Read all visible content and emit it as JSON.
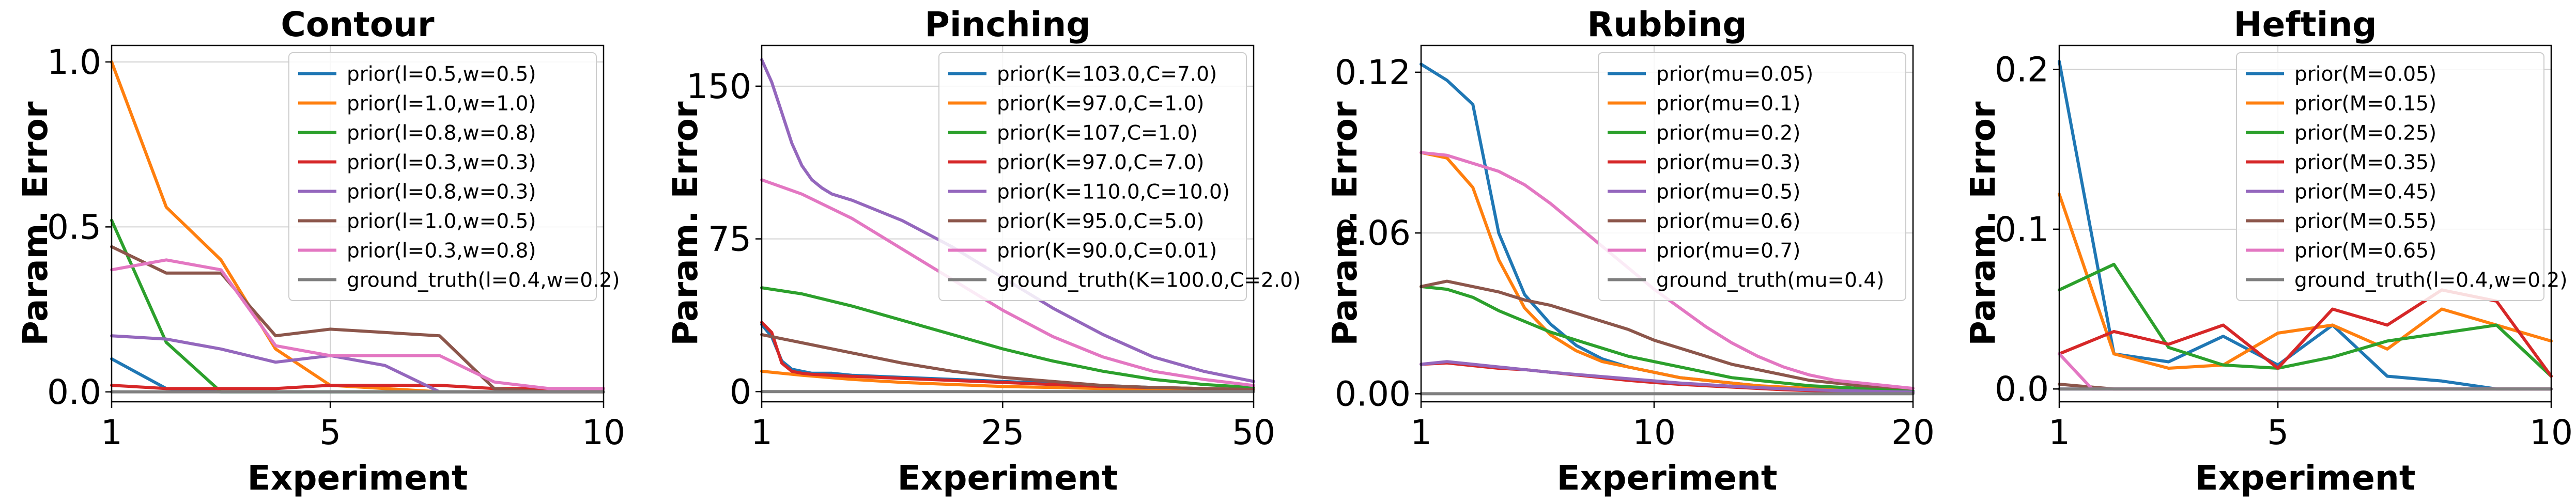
{
  "colors": {
    "c0": "#1f77b4",
    "c1": "#ff7f0e",
    "c2": "#2ca02c",
    "c3": "#d62728",
    "c4": "#9467bd",
    "c5": "#8c564b",
    "c6": "#e377c2",
    "c7": "#7f7f7f"
  },
  "chart_data": [
    {
      "type": "line",
      "title": "Contour",
      "xlabel": "Experiment",
      "ylabel": "Param. Error",
      "xlim": [
        1,
        10
      ],
      "ylim": [
        -0.03,
        1.05
      ],
      "xticks": [
        1,
        5,
        10
      ],
      "yticks": [
        0.0,
        0.5,
        1.0
      ],
      "ytick_labels": [
        "0.0",
        "0.5",
        "1.0"
      ],
      "grid": true,
      "legend_position": "upper-right",
      "series": [
        {
          "name": "prior(l=0.5,w=0.5)",
          "x": [
            1,
            2,
            3,
            4,
            5,
            6,
            7,
            8,
            9,
            10
          ],
          "values": [
            0.1,
            0.01,
            0.0,
            0.0,
            0.0,
            0.0,
            0.0,
            0.0,
            0.0,
            0.0
          ]
        },
        {
          "name": "prior(l=1.0,w=1.0)",
          "x": [
            1,
            2,
            3,
            4,
            5,
            6,
            7,
            8,
            9,
            10
          ],
          "values": [
            1.0,
            0.56,
            0.4,
            0.13,
            0.02,
            0.01,
            0.0,
            0.0,
            0.0,
            0.0
          ]
        },
        {
          "name": "prior(l=0.8,w=0.8)",
          "x": [
            1,
            2,
            3,
            4,
            5,
            6,
            7,
            8,
            9,
            10
          ],
          "values": [
            0.52,
            0.15,
            0.0,
            0.0,
            0.0,
            0.0,
            0.0,
            0.0,
            0.0,
            0.0
          ]
        },
        {
          "name": "prior(l=0.3,w=0.3)",
          "x": [
            1,
            2,
            3,
            4,
            5,
            6,
            7,
            8,
            9,
            10
          ],
          "values": [
            0.02,
            0.01,
            0.01,
            0.01,
            0.02,
            0.02,
            0.02,
            0.01,
            0.01,
            0.01
          ]
        },
        {
          "name": "prior(l=0.8,w=0.3)",
          "x": [
            1,
            2,
            3,
            4,
            5,
            6,
            7,
            8,
            9,
            10
          ],
          "values": [
            0.17,
            0.16,
            0.13,
            0.09,
            0.11,
            0.08,
            0.0,
            0.0,
            0.0,
            0.0
          ]
        },
        {
          "name": "prior(l=1.0,w=0.5)",
          "x": [
            1,
            2,
            3,
            4,
            5,
            6,
            7,
            8,
            9,
            10
          ],
          "values": [
            0.44,
            0.36,
            0.36,
            0.17,
            0.19,
            0.18,
            0.17,
            0.01,
            0.0,
            0.0
          ]
        },
        {
          "name": "prior(l=0.3,w=0.8)",
          "x": [
            1,
            2,
            3,
            4,
            5,
            6,
            7,
            8,
            9,
            10
          ],
          "values": [
            0.37,
            0.4,
            0.37,
            0.14,
            0.11,
            0.11,
            0.11,
            0.03,
            0.01,
            0.01
          ]
        },
        {
          "name": "ground_truth(l=0.4,w=0.2)",
          "x": [
            1,
            10
          ],
          "values": [
            0.0,
            0.0
          ]
        }
      ]
    },
    {
      "type": "line",
      "title": "Pinching",
      "xlabel": "Experiment",
      "ylabel": "Param. Error",
      "xlim": [
        1,
        50
      ],
      "ylim": [
        -5,
        170
      ],
      "xticks": [
        1,
        25,
        50
      ],
      "yticks": [
        0,
        75,
        150
      ],
      "ytick_labels": [
        "0",
        "75",
        "150"
      ],
      "grid": true,
      "legend_position": "upper-right",
      "series": [
        {
          "name": "prior(K=103.0,C=7.0)",
          "x": [
            1,
            2,
            3,
            4,
            5,
            6,
            8,
            10,
            15,
            20,
            25,
            30,
            35,
            40,
            45,
            50
          ],
          "values": [
            33,
            27,
            15,
            11,
            10,
            9,
            9,
            8,
            7,
            6,
            5,
            4,
            3,
            2,
            1.5,
            1
          ]
        },
        {
          "name": "prior(K=97.0,C=1.0)",
          "x": [
            1,
            5,
            10,
            15,
            20,
            25,
            30,
            35,
            40,
            45,
            50
          ],
          "values": [
            10,
            8,
            6,
            4.5,
            3.5,
            2.5,
            2,
            1.5,
            1,
            0.7,
            0.5
          ]
        },
        {
          "name": "prior(K=107,C=1.0)",
          "x": [
            1,
            5,
            10,
            15,
            20,
            25,
            30,
            35,
            40,
            45,
            50
          ],
          "values": [
            51,
            48,
            42,
            35,
            28,
            21,
            15,
            10,
            6,
            3.5,
            2
          ]
        },
        {
          "name": "prior(K=97.0,C=7.0)",
          "x": [
            1,
            2,
            3,
            4,
            5,
            6,
            8,
            10,
            15,
            20,
            25,
            30,
            35,
            40,
            45,
            50
          ],
          "values": [
            34,
            29,
            14,
            10,
            9,
            8.5,
            8,
            7.5,
            6.5,
            5.5,
            4.5,
            3.5,
            2.5,
            2,
            1.5,
            1
          ]
        },
        {
          "name": "prior(K=110.0,C=10.0)",
          "x": [
            1,
            2,
            3,
            4,
            5,
            6,
            7,
            8,
            10,
            15,
            20,
            25,
            30,
            35,
            40,
            45,
            50
          ],
          "values": [
            163,
            152,
            137,
            122,
            111,
            104,
            100,
            97,
            94,
            84,
            71,
            56,
            41,
            28,
            17,
            10,
            5
          ]
        },
        {
          "name": "prior(K=95.0,C=5.0)",
          "x": [
            1,
            5,
            10,
            15,
            20,
            25,
            30,
            35,
            40,
            45,
            50
          ],
          "values": [
            28,
            24,
            19,
            14,
            10,
            7,
            5,
            3,
            2,
            1.5,
            1
          ]
        },
        {
          "name": "prior(K=90.0,C=0.01)",
          "x": [
            1,
            5,
            10,
            15,
            20,
            25,
            30,
            35,
            40,
            45,
            50
          ],
          "values": [
            104,
            97,
            85,
            70,
            55,
            40,
            27,
            17,
            10,
            6,
            3
          ]
        },
        {
          "name": "ground_truth(K=100.0,C=2.0)",
          "x": [
            1,
            50
          ],
          "values": [
            0,
            0
          ]
        }
      ]
    },
    {
      "type": "line",
      "title": "Rubbing",
      "xlabel": "Experiment",
      "ylabel": "Param. Error",
      "xlim": [
        1,
        20
      ],
      "ylim": [
        -0.003,
        0.13
      ],
      "xticks": [
        1,
        10,
        20
      ],
      "yticks": [
        0.0,
        0.06,
        0.12
      ],
      "ytick_labels": [
        "0.00",
        "0.06",
        "0.12"
      ],
      "grid": true,
      "legend_position": "upper-right",
      "series": [
        {
          "name": "prior(mu=0.05)",
          "x": [
            1,
            2,
            3,
            4,
            5,
            6,
            7,
            8,
            9,
            10,
            11,
            12,
            13,
            14,
            15,
            16,
            17,
            18,
            19,
            20
          ],
          "values": [
            0.123,
            0.117,
            0.108,
            0.06,
            0.037,
            0.026,
            0.018,
            0.013,
            0.01,
            0.008,
            0.006,
            0.005,
            0.004,
            0.003,
            0.002,
            0.0015,
            0.001,
            0.001,
            0.0008,
            0.0005
          ]
        },
        {
          "name": "prior(mu=0.1)",
          "x": [
            1,
            2,
            3,
            4,
            5,
            6,
            7,
            8,
            9,
            10,
            11,
            12,
            13,
            14,
            15,
            16,
            17,
            18,
            19,
            20
          ],
          "values": [
            0.09,
            0.088,
            0.077,
            0.05,
            0.032,
            0.022,
            0.016,
            0.012,
            0.01,
            0.008,
            0.006,
            0.005,
            0.004,
            0.003,
            0.0025,
            0.002,
            0.0015,
            0.001,
            0.0008,
            0.0005
          ]
        },
        {
          "name": "prior(mu=0.2)",
          "x": [
            1,
            2,
            3,
            4,
            5,
            6,
            7,
            8,
            9,
            10,
            11,
            12,
            13,
            14,
            15,
            16,
            17,
            18,
            19,
            20
          ],
          "values": [
            0.04,
            0.039,
            0.036,
            0.031,
            0.027,
            0.023,
            0.02,
            0.017,
            0.014,
            0.012,
            0.01,
            0.008,
            0.006,
            0.005,
            0.004,
            0.003,
            0.0025,
            0.002,
            0.0015,
            0.001
          ]
        },
        {
          "name": "prior(mu=0.3)",
          "x": [
            1,
            2,
            3,
            4,
            5,
            6,
            7,
            8,
            9,
            10,
            11,
            12,
            13,
            14,
            15,
            16,
            17,
            18,
            19,
            20
          ],
          "values": [
            0.011,
            0.0115,
            0.0105,
            0.0095,
            0.009,
            0.008,
            0.007,
            0.006,
            0.005,
            0.0042,
            0.0035,
            0.003,
            0.0025,
            0.002,
            0.0015,
            0.0012,
            0.001,
            0.0008,
            0.0006,
            0.0005
          ]
        },
        {
          "name": "prior(mu=0.5)",
          "x": [
            1,
            2,
            3,
            4,
            5,
            6,
            7,
            8,
            9,
            10,
            11,
            12,
            13,
            14,
            15,
            16,
            17,
            18,
            19,
            20
          ],
          "values": [
            0.011,
            0.012,
            0.011,
            0.01,
            0.009,
            0.008,
            0.0072,
            0.0064,
            0.0056,
            0.0048,
            0.004,
            0.0034,
            0.0028,
            0.0023,
            0.0019,
            0.0015,
            0.0012,
            0.001,
            0.0008,
            0.0006
          ]
        },
        {
          "name": "prior(mu=0.6)",
          "x": [
            1,
            2,
            3,
            4,
            5,
            6,
            7,
            8,
            9,
            10,
            11,
            12,
            13,
            14,
            15,
            16,
            17,
            18,
            19,
            20
          ],
          "values": [
            0.04,
            0.042,
            0.04,
            0.038,
            0.035,
            0.033,
            0.03,
            0.027,
            0.024,
            0.02,
            0.017,
            0.014,
            0.011,
            0.009,
            0.007,
            0.005,
            0.004,
            0.003,
            0.0025,
            0.002
          ]
        },
        {
          "name": "prior(mu=0.7)",
          "x": [
            1,
            2,
            3,
            4,
            5,
            6,
            7,
            8,
            9,
            10,
            11,
            12,
            13,
            14,
            15,
            16,
            17,
            18,
            19,
            20
          ],
          "values": [
            0.09,
            0.089,
            0.086,
            0.083,
            0.078,
            0.071,
            0.063,
            0.055,
            0.047,
            0.039,
            0.032,
            0.025,
            0.019,
            0.014,
            0.01,
            0.007,
            0.005,
            0.004,
            0.003,
            0.002
          ]
        },
        {
          "name": "ground_truth(mu=0.4)",
          "x": [
            1,
            20
          ],
          "values": [
            0.0,
            0.0
          ]
        }
      ]
    },
    {
      "type": "line",
      "title": "Hefting",
      "xlabel": "Experiment",
      "ylabel": "Param. Error",
      "xlim": [
        1,
        10
      ],
      "ylim": [
        -0.008,
        0.215
      ],
      "xticks": [
        1,
        5,
        10
      ],
      "yticks": [
        0.0,
        0.1,
        0.2
      ],
      "ytick_labels": [
        "0.0",
        "0.1",
        "0.2"
      ],
      "grid": true,
      "legend_position": "upper-right",
      "series": [
        {
          "name": "prior(M=0.05)",
          "x": [
            1,
            2,
            3,
            4,
            5,
            6,
            7,
            8,
            9,
            10
          ],
          "values": [
            0.205,
            0.022,
            0.017,
            0.033,
            0.015,
            0.04,
            0.008,
            0.005,
            0.0,
            0.0
          ]
        },
        {
          "name": "prior(M=0.15)",
          "x": [
            1,
            2,
            3,
            4,
            5,
            6,
            7,
            8,
            9,
            10
          ],
          "values": [
            0.122,
            0.022,
            0.013,
            0.015,
            0.035,
            0.04,
            0.025,
            0.05,
            0.04,
            0.03
          ]
        },
        {
          "name": "prior(M=0.25)",
          "x": [
            1,
            2,
            3,
            4,
            5,
            6,
            7,
            8,
            9,
            10
          ],
          "values": [
            0.062,
            0.078,
            0.026,
            0.015,
            0.013,
            0.02,
            0.03,
            0.035,
            0.04,
            0.008
          ]
        },
        {
          "name": "prior(M=0.35)",
          "x": [
            1,
            2,
            3,
            4,
            5,
            6,
            7,
            8,
            9,
            10
          ],
          "values": [
            0.022,
            0.036,
            0.028,
            0.04,
            0.013,
            0.05,
            0.04,
            0.062,
            0.055,
            0.008
          ]
        },
        {
          "name": "prior(M=0.45)",
          "x": [
            1,
            10
          ],
          "values": [
            0.0,
            0.0
          ]
        },
        {
          "name": "prior(M=0.55)",
          "x": [
            1,
            2,
            3,
            10
          ],
          "values": [
            0.003,
            0.0,
            0.0,
            0.0
          ]
        },
        {
          "name": "prior(M=0.65)",
          "x": [
            1,
            1.6,
            2,
            10
          ],
          "values": [
            0.022,
            0.0,
            0.0,
            0.0
          ]
        },
        {
          "name": "ground_truth(l=0.4,w=0.2)",
          "x": [
            1,
            10
          ],
          "values": [
            0.0,
            0.0
          ]
        }
      ]
    }
  ]
}
